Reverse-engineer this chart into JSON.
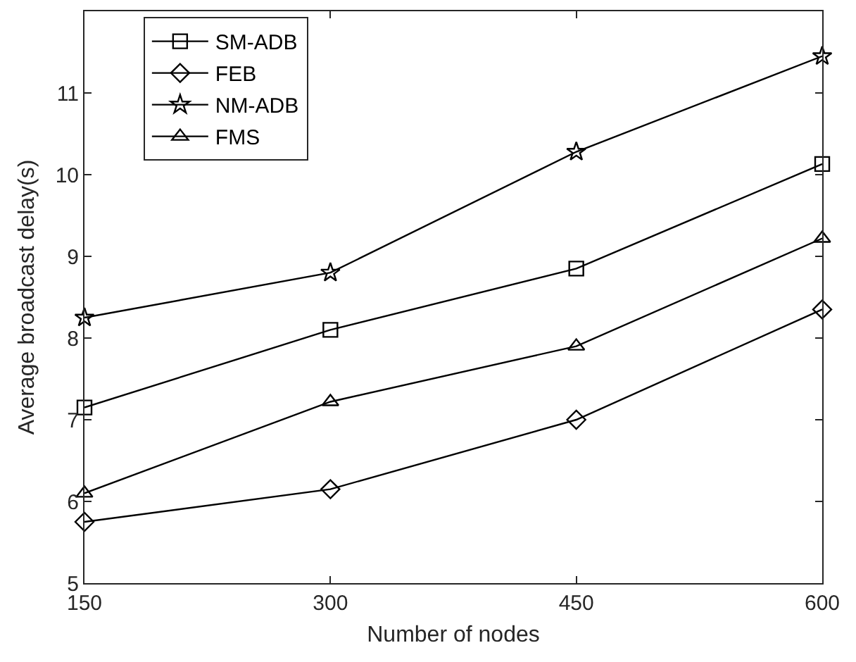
{
  "chart_data": {
    "type": "line",
    "xlabel": "Number of nodes",
    "ylabel": "Average broadcast delay(s)",
    "x": [
      150,
      300,
      450,
      600
    ],
    "xlim": [
      150,
      600
    ],
    "xticks": [
      150,
      300,
      450,
      600
    ],
    "ylim": [
      5,
      12
    ],
    "yticks": [
      5,
      6,
      7,
      8,
      9,
      10,
      11
    ],
    "legend": "top left",
    "line_style": "solid",
    "series": [
      {
        "name": "SM-ADB",
        "color": "#000000",
        "marker": "square",
        "values": [
          7.15,
          8.1,
          8.85,
          10.13
        ]
      },
      {
        "name": "FEB",
        "color": "#000000",
        "marker": "diamond",
        "values": [
          5.75,
          6.15,
          7.0,
          8.35
        ]
      },
      {
        "name": "NM-ADB",
        "color": "#000000",
        "marker": "star",
        "values": [
          8.25,
          8.8,
          10.28,
          11.45
        ]
      },
      {
        "name": "FMS",
        "color": "#000000",
        "marker": "triangle",
        "values": [
          6.1,
          7.22,
          7.9,
          9.22
        ]
      }
    ]
  }
}
